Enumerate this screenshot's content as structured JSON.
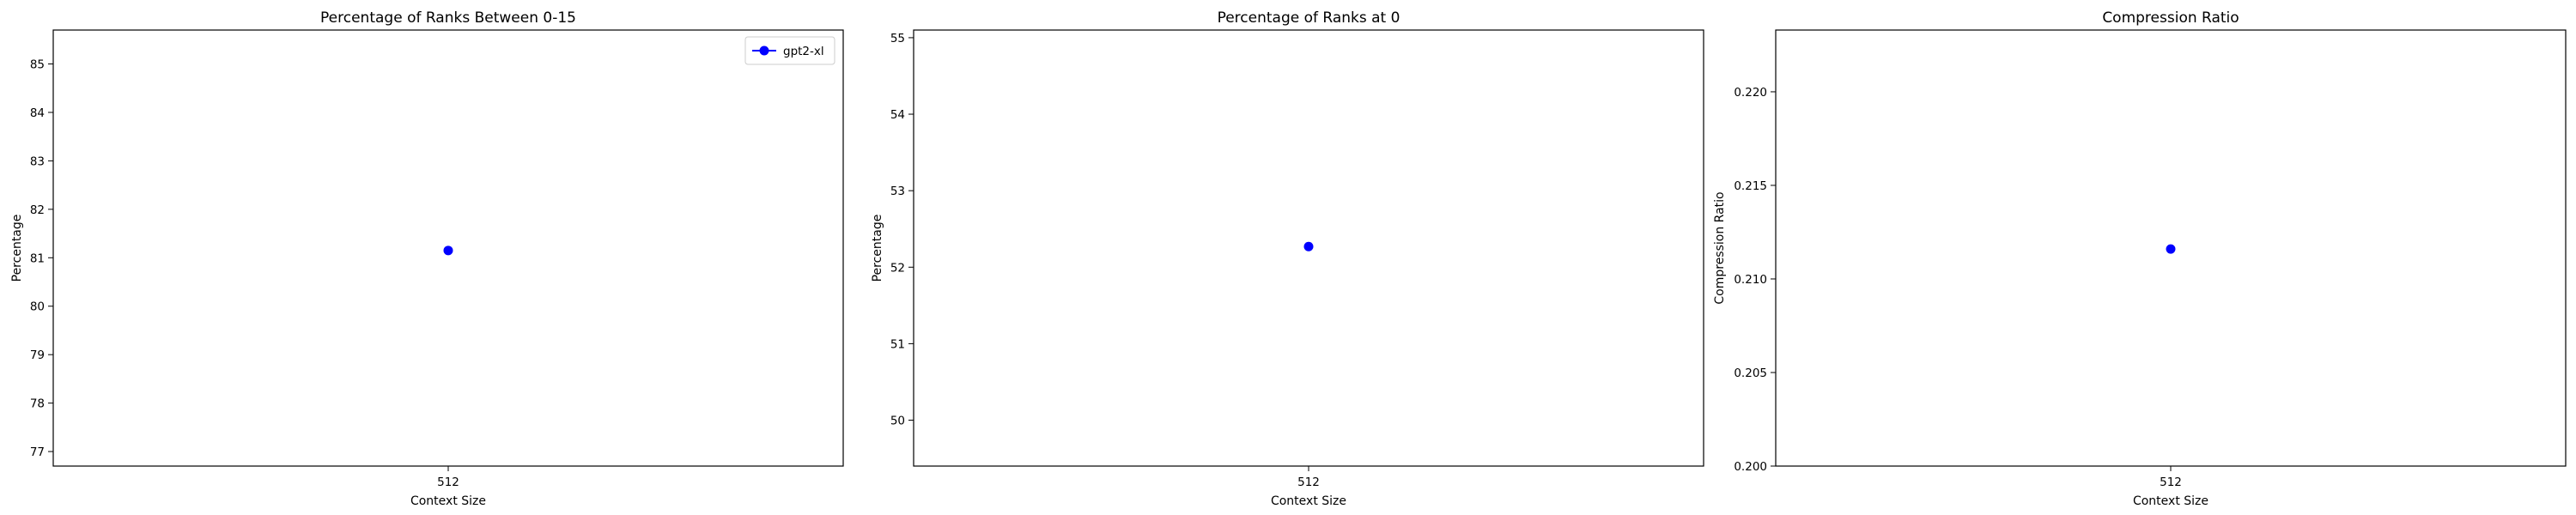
{
  "chart_data": [
    {
      "type": "line",
      "title": "Percentage of Ranks Between 0-15",
      "xlabel": "Context Size",
      "ylabel": "Percentage",
      "categories": [
        "512"
      ],
      "ylim": [
        76.7,
        85.7
      ],
      "yticks": [
        77,
        78,
        79,
        80,
        81,
        82,
        83,
        84,
        85
      ],
      "ytick_labels": [
        "77",
        "78",
        "79",
        "80",
        "81",
        "82",
        "83",
        "84",
        "85"
      ],
      "series": [
        {
          "name": "gpt2-xl",
          "values": [
            81.15
          ],
          "color": "#0000ff"
        }
      ],
      "legend": {
        "show": true,
        "placement": "top-right"
      }
    },
    {
      "type": "line",
      "title": "Percentage of Ranks at 0",
      "xlabel": "Context Size",
      "ylabel": "Percentage",
      "categories": [
        "512"
      ],
      "ylim": [
        49.4,
        55.1
      ],
      "yticks": [
        50,
        51,
        52,
        53,
        54,
        55
      ],
      "ytick_labels": [
        "50",
        "51",
        "52",
        "53",
        "54",
        "55"
      ],
      "series": [
        {
          "values": [
            52.27
          ],
          "color": "#0000ff"
        }
      ],
      "legend": {
        "show": false
      }
    },
    {
      "type": "line",
      "title": "Compression Ratio",
      "xlabel": "Context Size",
      "ylabel": "Compression Ratio",
      "categories": [
        "512"
      ],
      "ylim": [
        0.2,
        0.2233
      ],
      "yticks": [
        0.2,
        0.205,
        0.21,
        0.215,
        0.22
      ],
      "ytick_labels": [
        "0.200",
        "0.205",
        "0.210",
        "0.215",
        "0.220"
      ],
      "series": [
        {
          "values": [
            0.2116
          ],
          "color": "#0000ff"
        }
      ],
      "legend": {
        "show": false
      }
    }
  ]
}
